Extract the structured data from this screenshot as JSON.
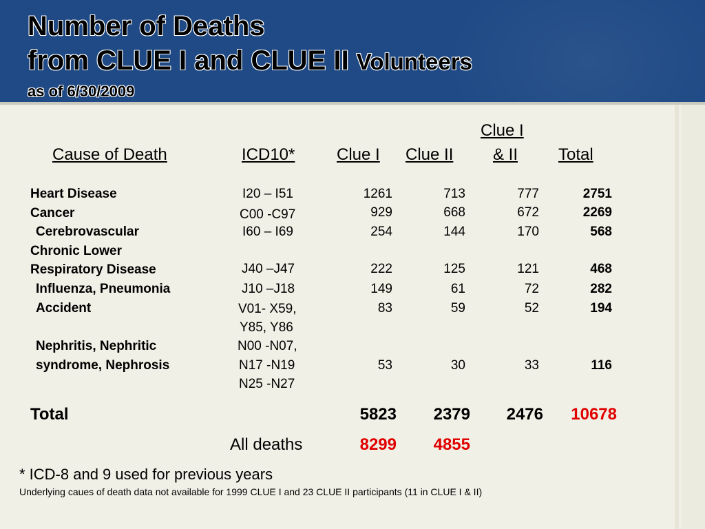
{
  "title": {
    "line1": "Number of Deaths",
    "line2_main": "from CLUE I and CLUE II ",
    "line2_small": "Volunteers",
    "line3": "as of 6/30/2009"
  },
  "columns": {
    "cause": "Cause of Death",
    "icd": "ICD10*",
    "clue1": "Clue I",
    "clue2": "Clue II",
    "both_line1": "Clue I",
    "both_line2": "& II",
    "total": "Total"
  },
  "rows": [
    {
      "cause": "Heart Disease",
      "icd": "I20 – I51",
      "clue1": "1261",
      "clue2": "713",
      "both": "777",
      "total": "2751"
    },
    {
      "cause": "Cancer",
      "icd": "C00 -C97",
      "clue1": "929",
      "clue2": "668",
      "both": "672",
      "total": "2269"
    },
    {
      "cause": "Cerebrovascular",
      "icd": "I60 – I69",
      "clue1": "254",
      "clue2": "144",
      "both": "170",
      "total": "568"
    },
    {
      "cause_line1": "Chronic Lower",
      "cause_line2": "Respiratory Disease",
      "icd": "J40 –J47",
      "clue1": "222",
      "clue2": "125",
      "both": "121",
      "total": "468"
    },
    {
      "cause": "Influenza, Pneumonia",
      "icd": "J10 –J18",
      "clue1": "149",
      "clue2": "61",
      "both": "72",
      "total": "282"
    },
    {
      "cause": "Accident",
      "icd_line1": "V01- X59,",
      "icd_line2": "Y85, Y86",
      "clue1": "83",
      "clue2": "59",
      "both": "52",
      "total": "194"
    },
    {
      "cause_line1": "Nephritis, Nephritic",
      "cause_line2": "syndrome, Nephrosis",
      "icd_line1": "N00 -N07,",
      "icd_line2": "N17 -N19",
      "icd_line3": "N25 -N27",
      "clue1": "53",
      "clue2": "30",
      "both": "33",
      "total": "116"
    }
  ],
  "totals": {
    "label": "Total",
    "clue1": "5823",
    "clue2": "2379",
    "both": "2476",
    "total": "10678"
  },
  "all_deaths": {
    "label": "All deaths",
    "clue1": "8299",
    "clue2": "4855"
  },
  "footnotes": {
    "icd_note": "* ICD-8 and 9 used for previous years",
    "data_note": "Underlying caues of death data not available for 1999 CLUE I and 23 CLUE II participants (11 in CLUE I & II)"
  },
  "colors": {
    "header_bg": "#1f4a85",
    "page_bg": "#f1f0e6",
    "highlight": "#e00000"
  }
}
